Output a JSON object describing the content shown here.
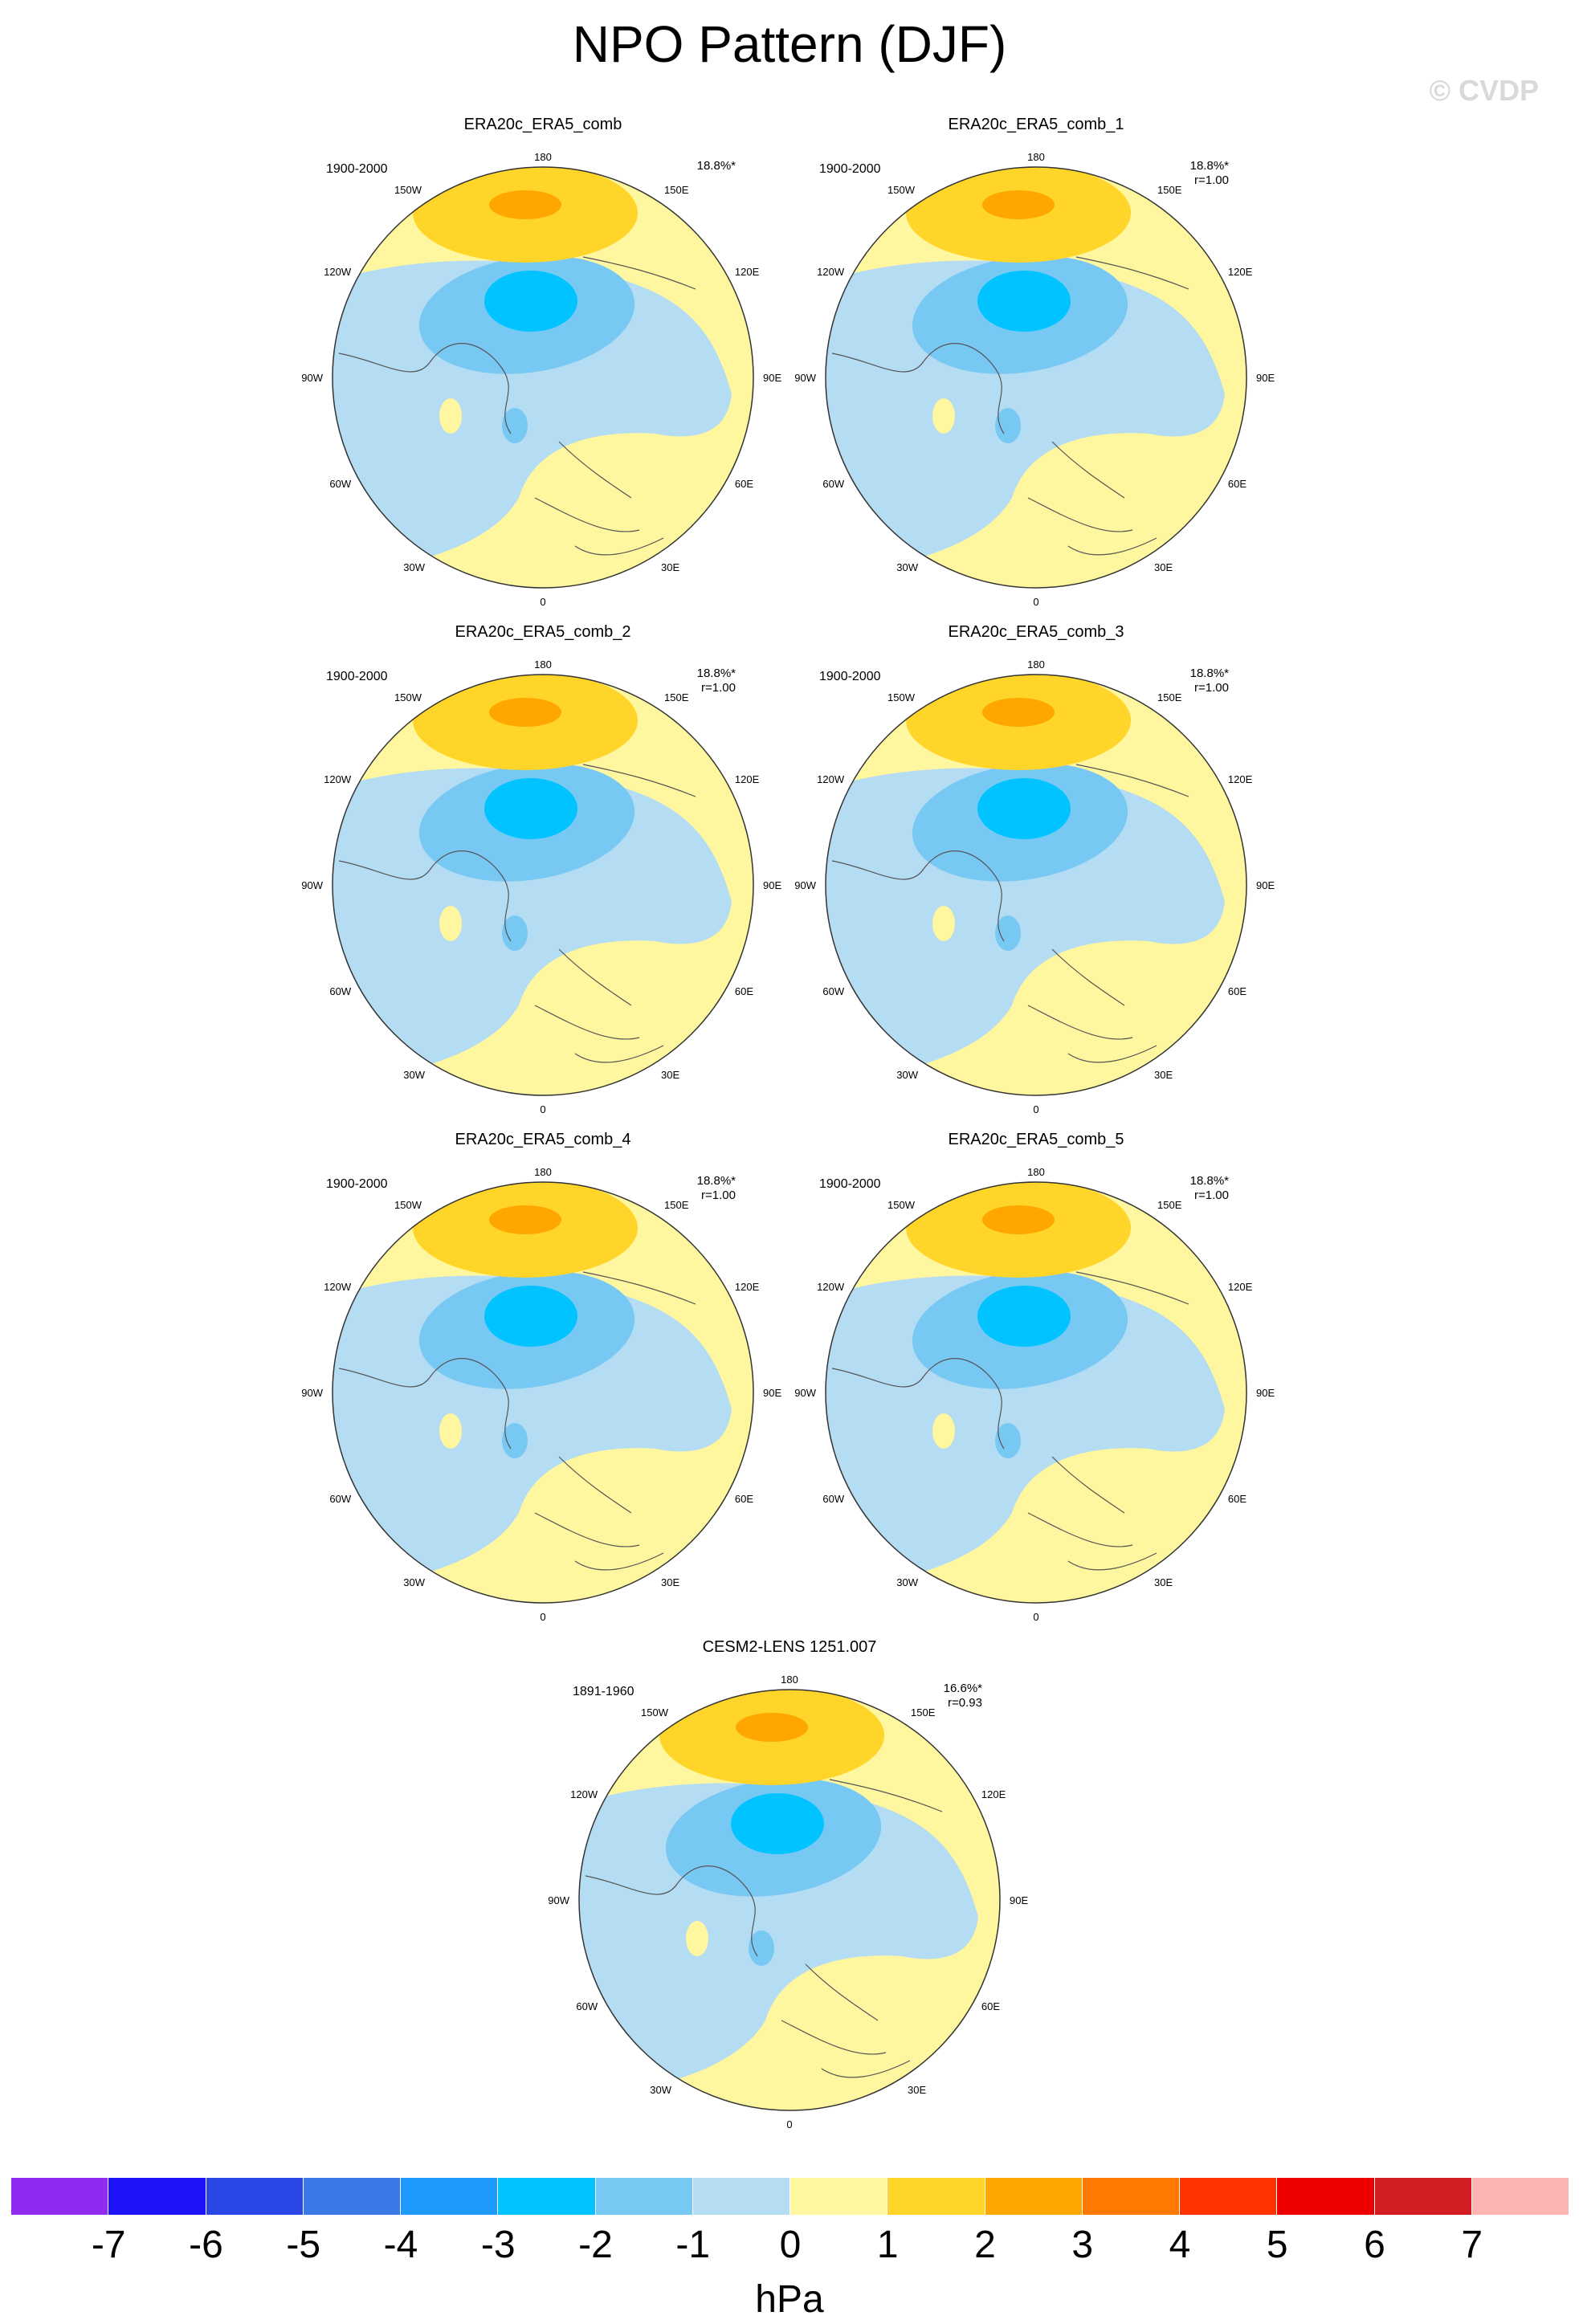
{
  "title": "NPO Pattern (DJF)",
  "copyright": "© CVDP",
  "longitude_labels": {
    "top": "180",
    "bottom": "0",
    "upper_left": "150W",
    "upper_right": "150E",
    "mid_upper_left": "120W",
    "mid_upper_right": "120E",
    "left": "90W",
    "right": "90E",
    "mid_lower_left": "60W",
    "mid_lower_right": "60E",
    "lower_left": "30W",
    "lower_right": "30E"
  },
  "panels": [
    {
      "name": "ERA20c_ERA5_comb",
      "years": "1900-2000",
      "pct": "18.8%*",
      "r": ""
    },
    {
      "name": "ERA20c_ERA5_comb_1",
      "years": "1900-2000",
      "pct": "18.8%*",
      "r": "r=1.00"
    },
    {
      "name": "ERA20c_ERA5_comb_2",
      "years": "1900-2000",
      "pct": "18.8%*",
      "r": "r=1.00"
    },
    {
      "name": "ERA20c_ERA5_comb_3",
      "years": "1900-2000",
      "pct": "18.8%*",
      "r": "r=1.00"
    },
    {
      "name": "ERA20c_ERA5_comb_4",
      "years": "1900-2000",
      "pct": "18.8%*",
      "r": "r=1.00"
    },
    {
      "name": "ERA20c_ERA5_comb_5",
      "years": "1900-2000",
      "pct": "18.8%*",
      "r": "r=1.00"
    },
    {
      "name": "CESM2-LENS 1251.007",
      "years": "1891-1960",
      "pct": "16.6%*",
      "r": "r=0.93"
    }
  ],
  "colorbar": {
    "unit": "hPa",
    "ticks": [
      "-7",
      "-6",
      "-5",
      "-4",
      "-3",
      "-2",
      "-1",
      "0",
      "1",
      "2",
      "3",
      "4",
      "5",
      "6",
      "7"
    ],
    "colors": [
      "#8f2bf0",
      "#1e12f9",
      "#2b46e6",
      "#3a78e6",
      "#1e9aff",
      "#00c3ff",
      "#78c8f4",
      "#b4dcf2",
      "#fff6a0",
      "#ffd52a",
      "#ffa600",
      "#ff7800",
      "#ff3200",
      "#ee0000",
      "#d21e23",
      "#ffb4b4"
    ]
  },
  "fill_colors": {
    "positive_1": "#fff6a0",
    "positive_2": "#ffd52a",
    "positive_3": "#ffa600",
    "negative_1": "#b4dcf2",
    "negative_2": "#78c8f4",
    "negative_3": "#00c3ff"
  }
}
